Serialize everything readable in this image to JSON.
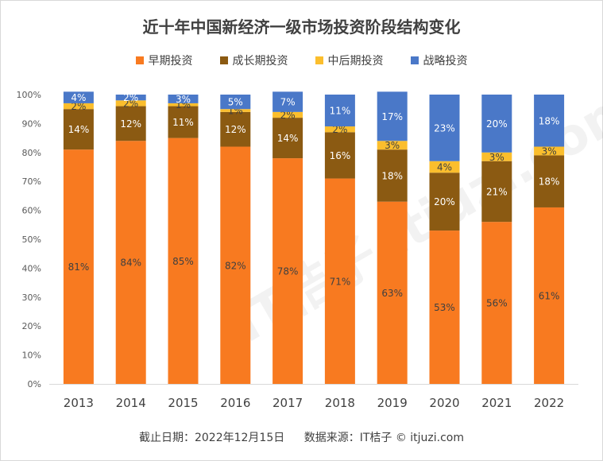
{
  "chart_data": {
    "type": "bar",
    "stacked": true,
    "title": "近十年中国新经济一级市场投资阶段结构变化",
    "categories": [
      "2013",
      "2014",
      "2015",
      "2016",
      "2017",
      "2018",
      "2019",
      "2020",
      "2021",
      "2022"
    ],
    "series": [
      {
        "name": "早期投资",
        "color": "#F87A20",
        "label_color": "#404040",
        "values": [
          81,
          84,
          85,
          82,
          78,
          71,
          63,
          53,
          56,
          61
        ]
      },
      {
        "name": "成长期投资",
        "color": "#8B5A12",
        "label_color": "#ffffff",
        "values": [
          14,
          12,
          11,
          12,
          14,
          16,
          18,
          20,
          21,
          18
        ]
      },
      {
        "name": "中后期投资",
        "color": "#FBBE2D",
        "label_color": "#404040",
        "values": [
          2,
          2,
          1,
          1,
          2,
          2,
          3,
          4,
          3,
          3
        ]
      },
      {
        "name": "战略投资",
        "color": "#4A78C8",
        "label_color": "#ffffff",
        "values": [
          4,
          2,
          3,
          5,
          7,
          11,
          17,
          23,
          20,
          18
        ]
      }
    ],
    "ylim": [
      0,
      100
    ],
    "yticks": [
      "0%",
      "10%",
      "20%",
      "30%",
      "40%",
      "50%",
      "60%",
      "70%",
      "80%",
      "90%",
      "100%"
    ],
    "legend_position": "top"
  },
  "footer": {
    "date": "截止日期：2022年12月15日",
    "source": "数据来源：IT桔子 © itjuzi.com"
  },
  "watermark": "IT桔子 itjuzi.com"
}
